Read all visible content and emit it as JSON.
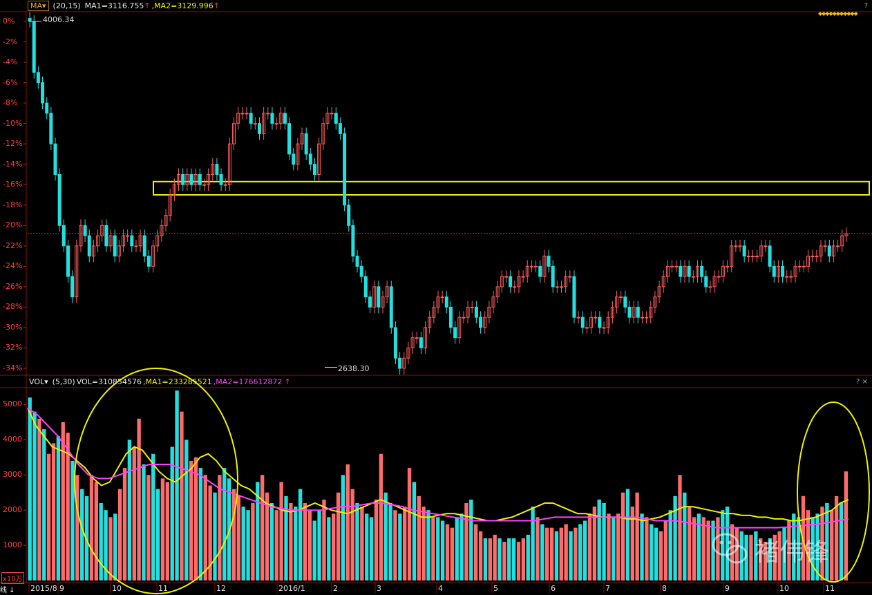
{
  "price_panel": {
    "indicator_tag": "MA▾",
    "params": "(20,15)",
    "ma1_label": "MA1=3116.755",
    "ma2_label": ",MA2=3129.996",
    "arrow1": "↑",
    "arrow2": "↑",
    "help": "?",
    "diamonds": "◆◆◆◆◆◆◆◆◆◆◆",
    "high_label": "4006.34",
    "low_label": "2638.30"
  },
  "volume_panel": {
    "indicator_tag": "VOL▾",
    "params": "(5,30)",
    "vol_label": "VOL=310854576",
    "ma1_label": ",MA1=233285521",
    "ma2_label": ",MA2=176612872",
    "arrow": "↑",
    "help": "? ×",
    "unit": "x10万",
    "bottom_left": "线 ↓"
  },
  "watermark": "褚伟锋",
  "chart_data": [
    {
      "type": "candlestick",
      "title": "",
      "ylabel": "",
      "y_ticks": [
        "0%",
        "-2%",
        "-4%",
        "-6%",
        "-8%",
        "-10%",
        "-12%",
        "-14%",
        "-16%",
        "-18%",
        "-20%",
        "-22%",
        "-24%",
        "-26%",
        "-28%",
        "-30%",
        "-32%",
        "-34%"
      ],
      "ylim": [
        -34.5,
        0.5
      ],
      "x_ticks": [
        "2015/8",
        "9",
        "10",
        "11",
        "12",
        "2016/1",
        "2",
        "3",
        "4",
        "5",
        "6",
        "7",
        "8",
        "9",
        "10",
        "11"
      ],
      "annotations": [
        "4006.34",
        "2638.30"
      ],
      "reference_line_pct": -20.8,
      "highlight_band_pct": [
        -15.7,
        -17.0
      ],
      "colors": {
        "up": "#ff5c5c",
        "down": "#20e0e0",
        "box": "#f0f000",
        "ref": "#ff3030"
      },
      "close_pct": [
        0,
        -5,
        -6,
        -8,
        -9,
        -12,
        -15,
        -20,
        -22,
        -25,
        -27,
        -22,
        -20,
        -21,
        -23,
        -22,
        -21,
        -20,
        -22,
        -21,
        -23,
        -22,
        -21,
        -21,
        -22,
        -22,
        -21,
        -23,
        -24,
        -22,
        -21,
        -20,
        -19,
        -17,
        -16,
        -15,
        -16,
        -15,
        -16,
        -15,
        -16,
        -16,
        -15,
        -14,
        -15,
        -16,
        -16,
        -12,
        -10,
        -9,
        -9,
        -9,
        -10,
        -10,
        -11,
        -9,
        -9,
        -10,
        -10,
        -9,
        -10,
        -13,
        -14,
        -12,
        -11,
        -13,
        -14,
        -15,
        -12,
        -10,
        -9,
        -9,
        -10,
        -11,
        -18,
        -20,
        -23,
        -24,
        -25,
        -27,
        -28,
        -26,
        -28,
        -27,
        -26,
        -30,
        -33,
        -34,
        -33,
        -32,
        -31,
        -31,
        -32,
        -30,
        -29,
        -28,
        -27,
        -27,
        -28,
        -30,
        -31,
        -29,
        -29,
        -28,
        -28,
        -29,
        -30,
        -29,
        -28,
        -27,
        -26,
        -25,
        -25,
        -26,
        -26,
        -25,
        -25,
        -24,
        -24,
        -24,
        -25,
        -23,
        -24,
        -26,
        -26,
        -26,
        -25,
        -25,
        -29,
        -29,
        -30,
        -30,
        -29,
        -29,
        -30,
        -30,
        -29,
        -28,
        -27,
        -27,
        -28,
        -29,
        -28,
        -29,
        -29,
        -29,
        -28,
        -27,
        -26,
        -25,
        -24,
        -24,
        -24,
        -25,
        -24,
        -25,
        -25,
        -24,
        -25,
        -26,
        -26,
        -25,
        -25,
        -24,
        -24,
        -22,
        -22,
        -22,
        -23,
        -23,
        -23,
        -23,
        -22,
        -22,
        -24,
        -25,
        -24,
        -25,
        -25,
        -25,
        -24,
        -24,
        -24,
        -23,
        -23,
        -23,
        -22,
        -22,
        -23,
        -22,
        -22,
        -21,
        -20.8
      ]
    },
    {
      "type": "bar+line",
      "title": "",
      "ylabel": "x10万",
      "y_ticks": [
        "1000",
        "2000",
        "3000",
        "4000",
        "5000"
      ],
      "ylim": [
        0,
        5500
      ],
      "x_ticks": [
        "2015/8",
        "9",
        "10",
        "11",
        "12",
        "2016/1",
        "2",
        "3",
        "4",
        "5",
        "6",
        "7",
        "8",
        "9",
        "10",
        "11"
      ],
      "series": [
        {
          "name": "MA1",
          "color": "#f0f000",
          "values": [
            4900,
            4400,
            4100,
            3800,
            3700,
            3600,
            3400,
            3200,
            2900,
            2700,
            2800,
            3200,
            3600,
            3800,
            3700,
            3400,
            3100,
            2900,
            2800,
            3000,
            3200,
            3500,
            3600,
            3400,
            3100,
            2900,
            2700,
            2600,
            2400,
            2200,
            2100,
            2000,
            1950,
            2000,
            2100,
            2200,
            2100,
            2000,
            1950,
            1900,
            2000,
            2100,
            2200,
            2300,
            2200,
            2100,
            2000,
            1900,
            1800,
            1800,
            1850,
            1900,
            1900,
            1850,
            1800,
            1750,
            1700,
            1700,
            1750,
            1800,
            1900,
            2000,
            2100,
            2200,
            2200,
            2100,
            2000,
            1900,
            1900,
            1850,
            1800,
            1800,
            1800,
            1750,
            1750,
            1700,
            1750,
            1800,
            1900,
            2000,
            2100,
            2100,
            2050,
            2000,
            1950,
            1900,
            1900,
            1850,
            1850,
            1800,
            1800,
            1750,
            1750,
            1700,
            1700,
            1750,
            1800,
            1900,
            2000,
            2200,
            2300
          ]
        },
        {
          "name": "MA2",
          "color": "#ff40ff",
          "values": [
            4900,
            4700,
            4400,
            4100,
            3700,
            3300,
            3000,
            2900,
            2900,
            3000,
            3100,
            3200,
            3300,
            3300,
            3300,
            3200,
            3100,
            3000,
            2800,
            2600,
            2500,
            2400,
            2300,
            2200,
            2100,
            2050,
            2000,
            2000,
            2000,
            2000,
            2050,
            2100,
            2100,
            2150,
            2200,
            2200,
            2150,
            2100,
            2000,
            1950,
            1900,
            1850,
            1800,
            1750,
            1700,
            1700,
            1700,
            1700,
            1700,
            1700,
            1700,
            1750,
            1800,
            1800,
            1800,
            1800,
            1800,
            1800,
            1800,
            1800,
            1800,
            1750,
            1700,
            1700,
            1700,
            1650,
            1600,
            1550,
            1500,
            1500,
            1500,
            1500,
            1500,
            1500,
            1500,
            1520,
            1550,
            1580,
            1600,
            1650,
            1700,
            1750
          ]
        }
      ],
      "bars": [
        5200,
        4800,
        4600,
        4300,
        3600,
        3900,
        4100,
        4500,
        4200,
        3400,
        3000,
        2600,
        2400,
        3000,
        2800,
        2200,
        2000,
        1800,
        1900,
        2600,
        3200,
        4000,
        3800,
        4600,
        3300,
        3000,
        3600,
        2600,
        2900,
        2800,
        3800,
        5400,
        4800,
        4000,
        3400,
        3500,
        3200,
        3000,
        2700,
        2500,
        3000,
        3200,
        2900,
        2600,
        2400,
        2100,
        2000,
        2200,
        2800,
        3000,
        2500,
        2200,
        2000,
        2800,
        2400,
        2200,
        2100,
        2600,
        2200,
        2000,
        1700,
        2000,
        2300,
        1800,
        1900,
        2500,
        3000,
        3300,
        2600,
        2200,
        2100,
        1900,
        1800,
        2300,
        3600,
        2500,
        2200,
        2000,
        1900,
        2100,
        3200,
        2800,
        2400,
        2100,
        2000,
        1800,
        1800,
        1700,
        1600,
        1500,
        1800,
        1900,
        2200,
        2300,
        1600,
        1400,
        1200,
        1200,
        1300,
        1200,
        1100,
        1200,
        1200,
        1100,
        1200,
        1300,
        2100,
        1800,
        1600,
        1500,
        1500,
        1400,
        1500,
        1600,
        1400,
        1500,
        1600,
        1700,
        1900,
        2100,
        2300,
        2200,
        1900,
        1800,
        1900,
        2500,
        2600,
        2100,
        2500,
        1900,
        1800,
        1600,
        1500,
        1400,
        1700,
        2000,
        2400,
        3000,
        2500,
        2100,
        1800,
        1900,
        1800,
        1700,
        1700,
        1800,
        2000,
        2100,
        1600,
        1500,
        1400,
        1300,
        1300,
        1400,
        1200,
        1100,
        1200,
        1300,
        1400,
        1500,
        1700,
        1900,
        1800,
        2400,
        2000,
        1800,
        1900,
        2100,
        2200,
        2000,
        2400,
        2200,
        3100
      ]
    }
  ]
}
